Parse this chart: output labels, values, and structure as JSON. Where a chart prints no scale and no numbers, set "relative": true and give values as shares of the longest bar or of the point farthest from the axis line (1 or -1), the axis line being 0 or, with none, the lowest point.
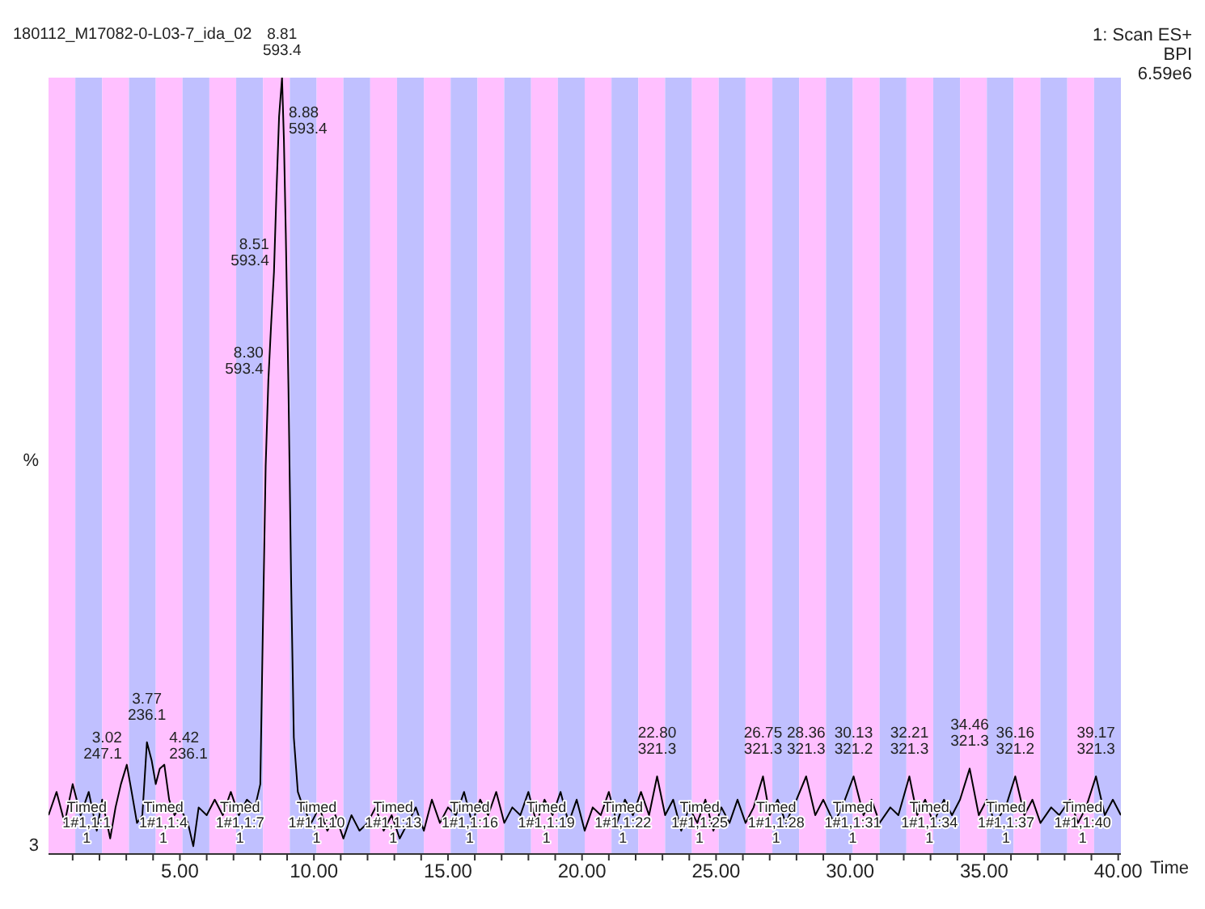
{
  "chart_data": {
    "type": "line",
    "title": "180112_M17082-0-L03-7_ida_02",
    "xlabel": "Time",
    "ylabel": "%",
    "relative": true,
    "xlim": [
      0.1,
      40.1
    ],
    "xticks": [
      {
        "value": 1,
        "label": null
      },
      {
        "value": 2,
        "label": null
      },
      {
        "value": 3,
        "label": null
      },
      {
        "value": 4,
        "label": null
      },
      {
        "value": 5,
        "label": "5.00"
      },
      {
        "value": 6,
        "label": null
      },
      {
        "value": 7,
        "label": null
      },
      {
        "value": 8,
        "label": null
      },
      {
        "value": 9,
        "label": null
      },
      {
        "value": 10,
        "label": "10.00"
      },
      {
        "value": 11,
        "label": null
      },
      {
        "value": 12,
        "label": null
      },
      {
        "value": 13,
        "label": null
      },
      {
        "value": 14,
        "label": null
      },
      {
        "value": 15,
        "label": "15.00"
      },
      {
        "value": 16,
        "label": null
      },
      {
        "value": 17,
        "label": null
      },
      {
        "value": 18,
        "label": null
      },
      {
        "value": 19,
        "label": null
      },
      {
        "value": 20,
        "label": "20.00"
      },
      {
        "value": 21,
        "label": null
      },
      {
        "value": 22,
        "label": null
      },
      {
        "value": 23,
        "label": null
      },
      {
        "value": 24,
        "label": null
      },
      {
        "value": 25,
        "label": "25.00"
      },
      {
        "value": 26,
        "label": null
      },
      {
        "value": 27,
        "label": null
      },
      {
        "value": 28,
        "label": null
      },
      {
        "value": 29,
        "label": null
      },
      {
        "value": 30,
        "label": "30.00"
      },
      {
        "value": 31,
        "label": null
      },
      {
        "value": 32,
        "label": null
      },
      {
        "value": 33,
        "label": null
      },
      {
        "value": 34,
        "label": null
      },
      {
        "value": 35,
        "label": "35.00"
      },
      {
        "value": 36,
        "label": null
      },
      {
        "value": 37,
        "label": null
      },
      {
        "value": 38,
        "label": null
      },
      {
        "value": 39,
        "label": null
      },
      {
        "value": 40,
        "label": "40.00"
      }
    ],
    "marker": "none",
    "line_style": "solid",
    "series": [
      {
        "color": "#000000",
        "x": [
          0.1,
          0.4,
          0.7,
          1.0,
          1.3,
          1.6,
          1.9,
          2.1,
          2.4,
          2.6,
          2.8,
          3.02,
          3.2,
          3.4,
          3.6,
          3.77,
          3.95,
          4.1,
          4.25,
          4.42,
          4.6,
          4.8,
          5.0,
          5.3,
          5.5,
          5.7,
          6.0,
          6.3,
          6.6,
          6.9,
          7.2,
          7.5,
          7.8,
          8.0,
          8.1,
          8.2,
          8.3,
          8.4,
          8.51,
          8.6,
          8.7,
          8.81,
          8.88,
          8.95,
          9.05,
          9.15,
          9.25,
          9.4,
          9.6,
          9.9,
          10.2,
          10.5,
          10.8,
          11.1,
          11.4,
          11.7,
          12.0,
          12.3,
          12.6,
          12.9,
          13.2,
          13.5,
          13.8,
          14.1,
          14.4,
          14.7,
          15.0,
          15.3,
          15.6,
          15.9,
          16.2,
          16.5,
          16.8,
          17.1,
          17.4,
          17.7,
          18.0,
          18.3,
          18.6,
          18.9,
          19.2,
          19.5,
          19.8,
          20.1,
          20.4,
          20.7,
          21.0,
          21.3,
          21.6,
          21.9,
          22.2,
          22.5,
          22.8,
          23.1,
          23.4,
          23.7,
          24.0,
          24.3,
          24.6,
          24.9,
          25.2,
          25.5,
          25.8,
          26.1,
          26.4,
          26.75,
          27.0,
          27.3,
          27.6,
          28.0,
          28.36,
          28.7,
          29.0,
          29.4,
          29.7,
          30.13,
          30.5,
          30.8,
          31.1,
          31.5,
          31.8,
          32.21,
          32.5,
          32.8,
          33.1,
          33.5,
          33.8,
          34.1,
          34.46,
          34.8,
          35.1,
          35.4,
          35.8,
          36.16,
          36.5,
          36.8,
          37.1,
          37.5,
          37.8,
          38.2,
          38.5,
          38.8,
          39.17,
          39.5,
          39.8,
          40.1
        ],
        "values": [
          0.05,
          0.08,
          0.04,
          0.09,
          0.05,
          0.08,
          0.03,
          0.07,
          0.02,
          0.06,
          0.09,
          0.115,
          0.08,
          0.04,
          0.05,
          0.144,
          0.12,
          0.09,
          0.11,
          0.115,
          0.07,
          0.05,
          0.06,
          0.04,
          0.01,
          0.06,
          0.05,
          0.07,
          0.05,
          0.08,
          0.05,
          0.07,
          0.06,
          0.09,
          0.3,
          0.5,
          0.61,
          0.68,
          0.75,
          0.85,
          0.95,
          1.0,
          0.92,
          0.8,
          0.6,
          0.35,
          0.15,
          0.08,
          0.06,
          0.04,
          0.06,
          0.03,
          0.05,
          0.02,
          0.05,
          0.03,
          0.04,
          0.06,
          0.03,
          0.05,
          0.02,
          0.04,
          0.06,
          0.03,
          0.07,
          0.04,
          0.06,
          0.05,
          0.08,
          0.04,
          0.07,
          0.05,
          0.08,
          0.04,
          0.06,
          0.05,
          0.08,
          0.04,
          0.07,
          0.05,
          0.08,
          0.04,
          0.07,
          0.03,
          0.06,
          0.05,
          0.08,
          0.04,
          0.07,
          0.05,
          0.08,
          0.05,
          0.1,
          0.05,
          0.07,
          0.03,
          0.06,
          0.04,
          0.07,
          0.03,
          0.06,
          0.04,
          0.07,
          0.04,
          0.06,
          0.1,
          0.05,
          0.07,
          0.04,
          0.07,
          0.1,
          0.05,
          0.07,
          0.04,
          0.06,
          0.1,
          0.05,
          0.07,
          0.04,
          0.06,
          0.05,
          0.1,
          0.05,
          0.07,
          0.04,
          0.07,
          0.05,
          0.07,
          0.11,
          0.05,
          0.07,
          0.04,
          0.06,
          0.1,
          0.05,
          0.07,
          0.04,
          0.06,
          0.05,
          0.07,
          0.04,
          0.06,
          0.1,
          0.05,
          0.07,
          0.05
        ]
      }
    ],
    "annotations": [
      {
        "text": "3.02\n247.1",
        "x": 3.02,
        "y": 0.115
      },
      {
        "text": "3.77\n236.1",
        "x": 3.77,
        "y": 0.144
      },
      {
        "text": "4.42\n236.1",
        "x": 4.42,
        "y": 0.115
      },
      {
        "text": "8.30\n593.4",
        "x": 8.3,
        "y": 0.61
      },
      {
        "text": "8.51\n593.4",
        "x": 8.51,
        "y": 0.75
      },
      {
        "text": "8.81\n593.4",
        "x": 8.81,
        "y": 1.0
      },
      {
        "text": "8.88\n593.4",
        "x": 8.88,
        "y": 0.92
      },
      {
        "text": "22.80\n321.3",
        "x": 22.8,
        "y": 0.1
      },
      {
        "text": "26.75\n321.3",
        "x": 26.75,
        "y": 0.1
      },
      {
        "text": "28.36\n321.3",
        "x": 28.36,
        "y": 0.1
      },
      {
        "text": "30.13\n321.2",
        "x": 30.13,
        "y": 0.1
      },
      {
        "text": "32.21\n321.3",
        "x": 32.21,
        "y": 0.1
      },
      {
        "text": "34.46\n321.3",
        "x": 34.46,
        "y": 0.11
      },
      {
        "text": "36.16\n321.2",
        "x": 36.16,
        "y": 0.1
      },
      {
        "text": "39.17\n321.3",
        "x": 39.17,
        "y": 0.1
      },
      "1: Scan ES+\nBPI\n6.59e6",
      "3",
      "Timed\n1#1,1:1\n1",
      "Timed\n1#1,1:4\n1",
      "Timed\n1#1,1:7\n1",
      "Timed\n1#1,1:10\n1",
      "Timed\n1#1,1:13\n1",
      "Timed\n1#1,1:16\n1",
      "Timed\n1#1,1:19\n1",
      "Timed\n1#1,1:22\n1",
      "Timed\n1#1,1:25\n1",
      "Timed\n1#1,1:28\n1",
      "Timed\n1#1,1:31\n1",
      "Timed\n1#1,1:34\n1",
      "Timed\n1#1,1:37\n1",
      "Timed\n1#1,1:40\n1"
    ],
    "bands": [
      {
        "axis": "x",
        "from": 0.1,
        "to": 1.1,
        "color": "#ffc0ff"
      },
      {
        "axis": "x",
        "from": 1.1,
        "to": 2.1,
        "color": "#c0c0ff"
      },
      {
        "axis": "x",
        "from": 2.1,
        "to": 3.1,
        "color": "#ffc0ff"
      },
      {
        "axis": "x",
        "from": 3.1,
        "to": 4.1,
        "color": "#c0c0ff"
      },
      {
        "axis": "x",
        "from": 4.1,
        "to": 5.1,
        "color": "#ffc0ff"
      },
      {
        "axis": "x",
        "from": 5.1,
        "to": 6.1,
        "color": "#c0c0ff"
      },
      {
        "axis": "x",
        "from": 6.1,
        "to": 7.1,
        "color": "#ffc0ff"
      },
      {
        "axis": "x",
        "from": 7.1,
        "to": 8.1,
        "color": "#c0c0ff"
      },
      {
        "axis": "x",
        "from": 8.1,
        "to": 9.1,
        "color": "#ffc0ff"
      },
      {
        "axis": "x",
        "from": 9.1,
        "to": 10.1,
        "color": "#c0c0ff"
      },
      {
        "axis": "x",
        "from": 10.1,
        "to": 11.1,
        "color": "#ffc0ff"
      },
      {
        "axis": "x",
        "from": 11.1,
        "to": 12.1,
        "color": "#c0c0ff"
      },
      {
        "axis": "x",
        "from": 12.1,
        "to": 13.1,
        "color": "#ffc0ff"
      },
      {
        "axis": "x",
        "from": 13.1,
        "to": 14.1,
        "color": "#c0c0ff"
      },
      {
        "axis": "x",
        "from": 14.1,
        "to": 15.1,
        "color": "#ffc0ff"
      },
      {
        "axis": "x",
        "from": 15.1,
        "to": 16.1,
        "color": "#c0c0ff"
      },
      {
        "axis": "x",
        "from": 16.1,
        "to": 17.1,
        "color": "#ffc0ff"
      },
      {
        "axis": "x",
        "from": 17.1,
        "to": 18.1,
        "color": "#c0c0ff"
      },
      {
        "axis": "x",
        "from": 18.1,
        "to": 19.1,
        "color": "#ffc0ff"
      },
      {
        "axis": "x",
        "from": 19.1,
        "to": 20.1,
        "color": "#c0c0ff"
      },
      {
        "axis": "x",
        "from": 20.1,
        "to": 21.1,
        "color": "#ffc0ff"
      },
      {
        "axis": "x",
        "from": 21.1,
        "to": 22.1,
        "color": "#c0c0ff"
      },
      {
        "axis": "x",
        "from": 22.1,
        "to": 23.1,
        "color": "#ffc0ff"
      },
      {
        "axis": "x",
        "from": 23.1,
        "to": 24.1,
        "color": "#c0c0ff"
      },
      {
        "axis": "x",
        "from": 24.1,
        "to": 25.1,
        "color": "#ffc0ff"
      },
      {
        "axis": "x",
        "from": 25.1,
        "to": 26.1,
        "color": "#c0c0ff"
      },
      {
        "axis": "x",
        "from": 26.1,
        "to": 27.1,
        "color": "#ffc0ff"
      },
      {
        "axis": "x",
        "from": 27.1,
        "to": 28.1,
        "color": "#c0c0ff"
      },
      {
        "axis": "x",
        "from": 28.1,
        "to": 29.1,
        "color": "#ffc0ff"
      },
      {
        "axis": "x",
        "from": 29.1,
        "to": 30.1,
        "color": "#c0c0ff"
      },
      {
        "axis": "x",
        "from": 30.1,
        "to": 31.1,
        "color": "#ffc0ff"
      },
      {
        "axis": "x",
        "from": 31.1,
        "to": 32.1,
        "color": "#c0c0ff"
      },
      {
        "axis": "x",
        "from": 32.1,
        "to": 33.1,
        "color": "#ffc0ff"
      },
      {
        "axis": "x",
        "from": 33.1,
        "to": 34.1,
        "color": "#c0c0ff"
      },
      {
        "axis": "x",
        "from": 34.1,
        "to": 35.1,
        "color": "#ffc0ff"
      },
      {
        "axis": "x",
        "from": 35.1,
        "to": 36.1,
        "color": "#c0c0ff"
      },
      {
        "axis": "x",
        "from": 36.1,
        "to": 37.1,
        "color": "#ffc0ff"
      },
      {
        "axis": "x",
        "from": 37.1,
        "to": 38.1,
        "color": "#c0c0ff"
      },
      {
        "axis": "x",
        "from": 38.1,
        "to": 39.1,
        "color": "#ffc0ff"
      },
      {
        "axis": "x",
        "from": 39.1,
        "to": 40.1,
        "color": "#c0c0ff"
      }
    ]
  }
}
